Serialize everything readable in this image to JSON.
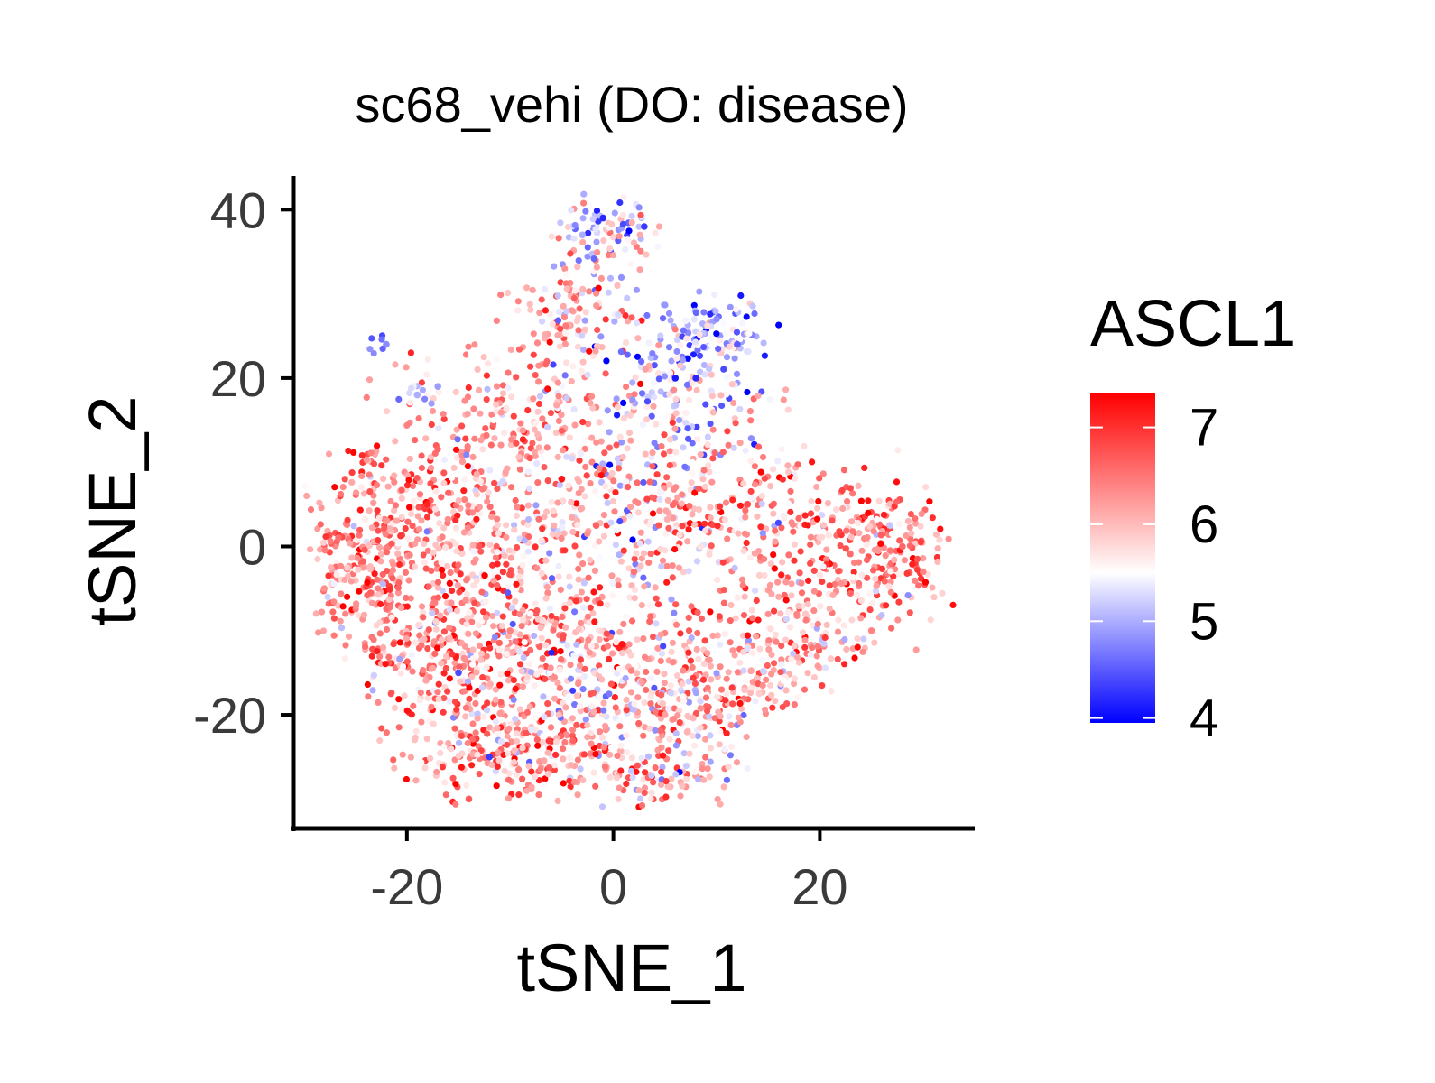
{
  "chart_data": {
    "type": "scatter",
    "title": "sc68_vehi (DO: disease)",
    "xlabel": "tSNE_1",
    "ylabel": "tSNE_2",
    "xlim": [
      -31.0,
      35.0
    ],
    "ylim": [
      -33.5,
      44.0
    ],
    "x_ticks": [
      -20,
      0,
      20
    ],
    "y_ticks": [
      -20,
      0,
      20,
      40
    ],
    "x_tick_labels": [
      "-20",
      "0",
      "20"
    ],
    "y_tick_labels": [
      "-20",
      "0",
      "20",
      "40"
    ],
    "grid": false,
    "legend": {
      "title": "ASCL1",
      "position": "right",
      "range": [
        3.95,
        7.35
      ],
      "ticks": [
        4,
        5,
        6,
        7
      ],
      "tick_labels": [
        "4",
        "5",
        "6",
        "7"
      ],
      "colors": {
        "low": "#0000ff",
        "mid": "#ffffff",
        "high": "#ff0000"
      },
      "midpoint": 5.5
    },
    "points": {
      "approx_count": 4000,
      "value_range": [
        4,
        7.3
      ],
      "sample": [
        [
          -22,
          3,
          6.3
        ],
        [
          -18,
          5,
          7.1
        ],
        [
          -10,
          -10,
          6.4
        ],
        [
          -5,
          8,
          7.2
        ],
        [
          2,
          -3,
          6.5
        ],
        [
          -3,
          37,
          5.0
        ],
        [
          -1,
          39,
          4.2
        ],
        [
          3,
          38,
          4.3
        ],
        [
          10,
          27,
          4.8
        ],
        [
          12,
          24,
          4.5
        ],
        [
          6,
          20,
          4.1
        ],
        [
          8,
          20,
          4.2
        ],
        [
          -22,
          24,
          4.8
        ],
        [
          -19,
          18,
          5.0
        ],
        [
          -17,
          19,
          4.9
        ],
        [
          13,
          5,
          6.8
        ],
        [
          28,
          0,
          6.6
        ],
        [
          30,
          -3,
          6.4
        ],
        [
          -28,
          -5,
          6.3
        ],
        [
          -14,
          -30,
          6.7
        ],
        [
          -12,
          -25,
          4.3
        ],
        [
          -15,
          -15,
          4.4
        ],
        [
          20,
          -20,
          5.5
        ],
        [
          25,
          -10,
          6.4
        ],
        [
          5,
          -20,
          6.2
        ]
      ]
    }
  }
}
